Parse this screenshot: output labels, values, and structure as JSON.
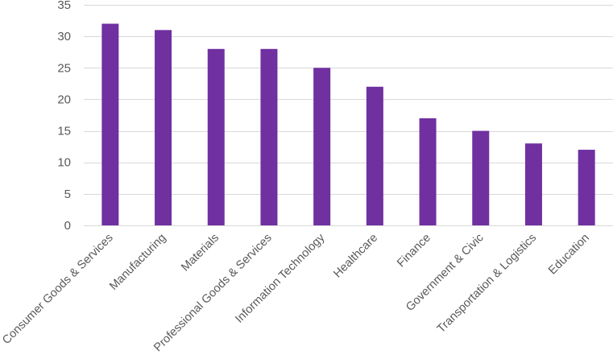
{
  "chart_data": {
    "type": "bar",
    "categories": [
      "Consumer Goods & Services",
      "Manufacturing",
      "Materials",
      "Professional Goods & Services",
      "Information Technology",
      "Healthcare",
      "Finance",
      "Government & Civic",
      "Transportation & Logistics",
      "Education"
    ],
    "series": [
      {
        "values": [
          32,
          31,
          28,
          28,
          25,
          22,
          17,
          15,
          13,
          12
        ],
        "color": "#7030a0"
      }
    ],
    "ylim": [
      0,
      35
    ],
    "yticks": [
      0,
      5,
      10,
      15,
      20,
      25,
      30,
      35
    ],
    "grid": true,
    "legend": "none",
    "title": "",
    "xlabel": "",
    "ylabel": ""
  }
}
